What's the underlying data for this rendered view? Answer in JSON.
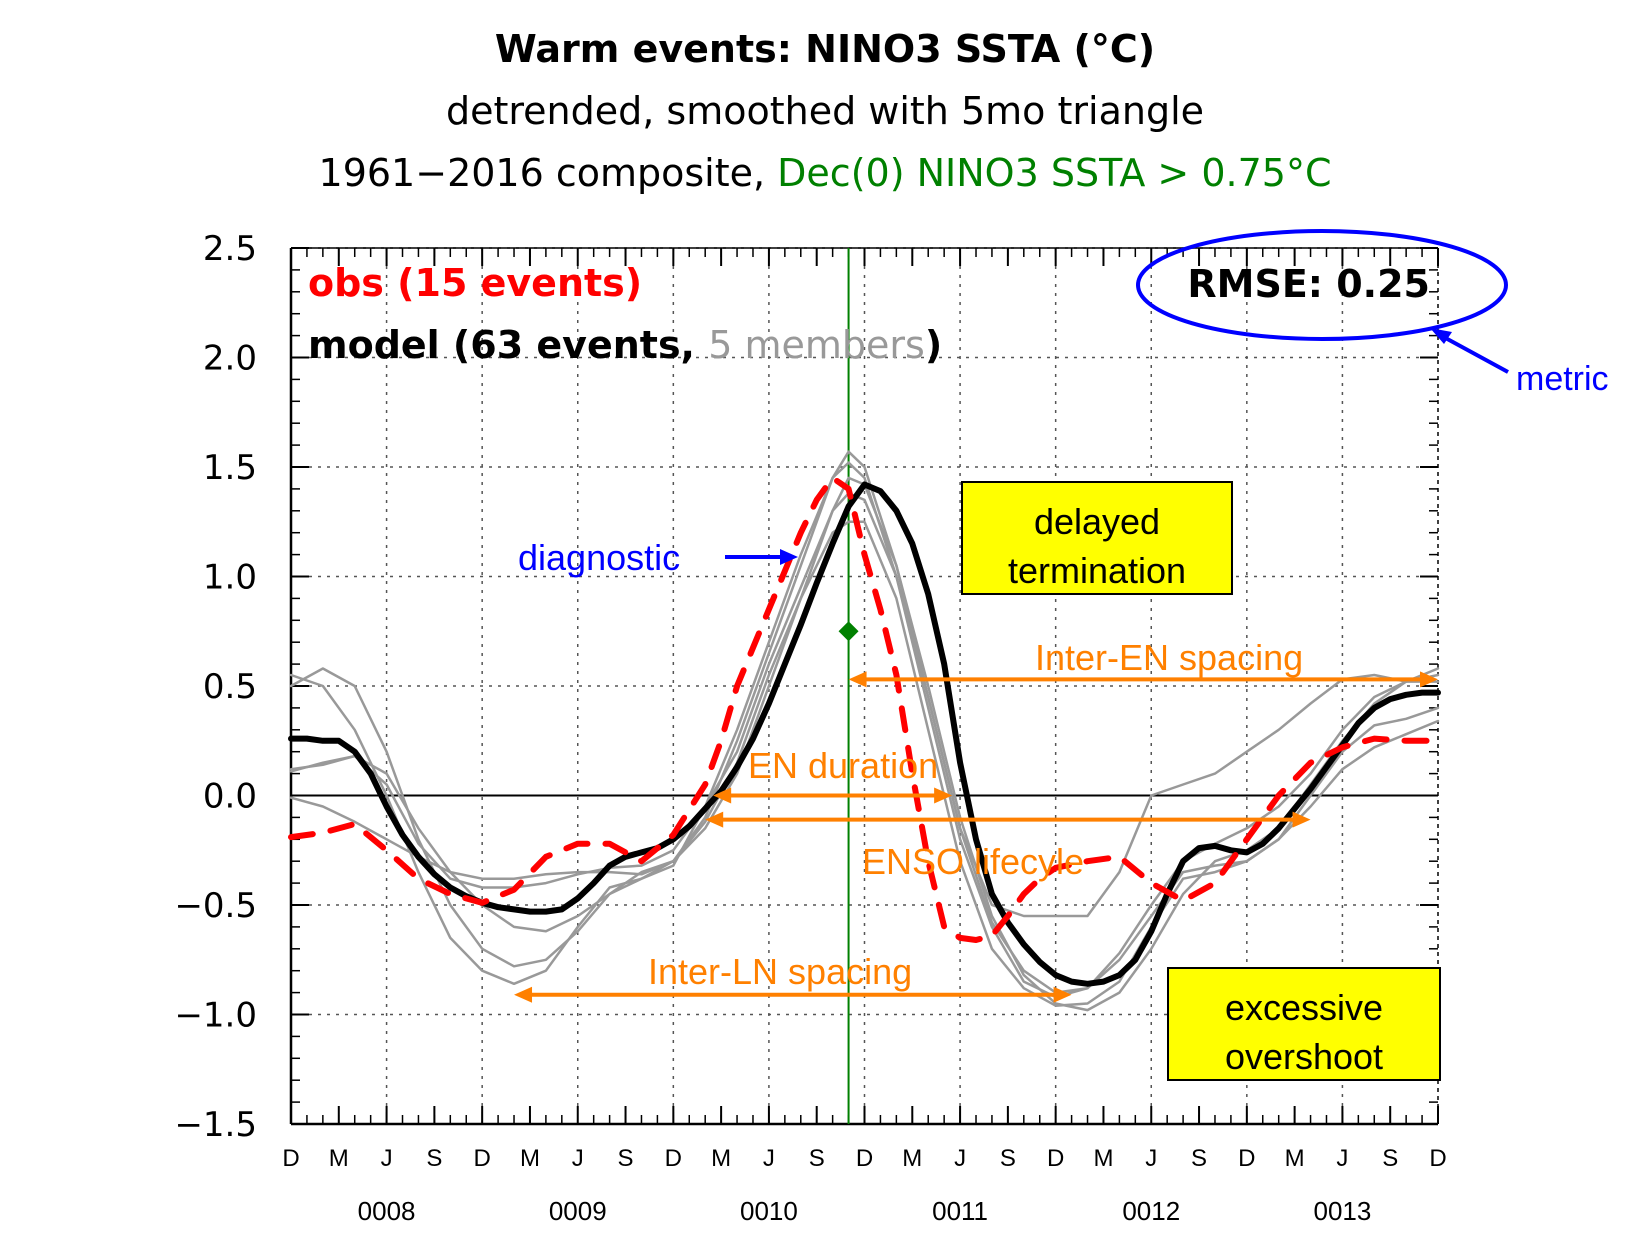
{
  "chart_data": {
    "type": "line",
    "title": "Warm events: NINO3 SSTA (°C)",
    "subtitle_line1": "detrended, smoothed with 5mo triangle",
    "subtitle_line2_prefix": "1961−2016 composite, ",
    "subtitle_line2_highlight": "Dec(0) NINO3 SSTA > 0.75°C",
    "ylim": [
      -1.5,
      2.5
    ],
    "yticks": [
      -1.5,
      -1.0,
      -0.5,
      0.0,
      0.5,
      1.0,
      1.5,
      2.0,
      2.5
    ],
    "ytick_labels": [
      "−1.5",
      "−1.0",
      "−0.5",
      "0.0",
      "0.5",
      "1.0",
      "1.5",
      "2.0",
      "2.5"
    ],
    "xlim": [
      0,
      72
    ],
    "x_month_ticks": [
      0,
      3,
      6,
      9,
      12,
      15,
      18,
      21,
      24,
      27,
      30,
      33,
      36,
      39,
      42,
      45,
      48,
      51,
      54,
      57,
      60,
      63,
      66,
      69,
      72
    ],
    "x_month_labels": [
      "D",
      "M",
      "J",
      "S",
      "D",
      "M",
      "J",
      "S",
      "D",
      "M",
      "J",
      "S",
      "D",
      "M",
      "J",
      "S",
      "D",
      "M",
      "J",
      "S",
      "D",
      "M",
      "J",
      "S",
      "D"
    ],
    "x_year_labels": [
      "0008",
      "0009",
      "0010",
      "0011",
      "0012",
      "0013"
    ],
    "x_year_positions": [
      6,
      18,
      30,
      42,
      54,
      66
    ],
    "grid": true,
    "legend": {
      "obs_label": "obs (15 events)",
      "model_label_prefix": "model (63 events, ",
      "model_label_members": "5 members",
      "model_label_suffix": ")"
    },
    "rmse_label": "RMSE: 0.25",
    "vertical_marker_x": 35,
    "threshold_marker": {
      "x": 35,
      "y": 0.75
    },
    "series": [
      {
        "name": "obs (15 events)",
        "color": "#ff0000",
        "style": "dashed",
        "x": [
          0,
          2,
          4,
          6,
          8,
          10,
          12,
          14,
          16,
          18,
          20,
          22,
          24,
          26,
          27,
          28,
          30,
          32,
          33,
          34,
          35,
          36,
          37,
          38,
          39,
          40,
          41,
          42,
          43,
          44,
          45,
          46,
          47,
          48,
          50,
          52,
          54,
          56,
          58,
          60,
          62,
          64,
          66,
          68,
          70,
          72
        ],
        "y": [
          -0.19,
          -0.17,
          -0.13,
          -0.25,
          -0.38,
          -0.45,
          -0.49,
          -0.43,
          -0.28,
          -0.22,
          -0.22,
          -0.3,
          -0.18,
          0.05,
          0.25,
          0.5,
          0.85,
          1.2,
          1.35,
          1.45,
          1.4,
          1.1,
          0.85,
          0.55,
          0.1,
          -0.3,
          -0.6,
          -0.65,
          -0.66,
          -0.64,
          -0.55,
          -0.45,
          -0.38,
          -0.33,
          -0.3,
          -0.28,
          -0.4,
          -0.48,
          -0.4,
          -0.2,
          0.0,
          0.15,
          0.22,
          0.26,
          0.25,
          0.25
        ]
      },
      {
        "name": "model (63 events, 5 members)",
        "color": "#000000",
        "style": "solid",
        "x": [
          0,
          1,
          2,
          3,
          4,
          5,
          6,
          7,
          8,
          9,
          10,
          11,
          12,
          13,
          14,
          15,
          16,
          17,
          18,
          19,
          20,
          21,
          22,
          23,
          24,
          25,
          26,
          27,
          28,
          29,
          30,
          31,
          32,
          33,
          34,
          35,
          36,
          37,
          38,
          39,
          40,
          41,
          42,
          43,
          44,
          45,
          46,
          47,
          48,
          49,
          50,
          51,
          52,
          53,
          54,
          55,
          56,
          57,
          58,
          59,
          60,
          61,
          62,
          63,
          64,
          65,
          66,
          67,
          68,
          69,
          70,
          71,
          72
        ],
        "y": [
          0.26,
          0.26,
          0.25,
          0.25,
          0.2,
          0.1,
          -0.05,
          -0.18,
          -0.28,
          -0.36,
          -0.42,
          -0.46,
          -0.49,
          -0.51,
          -0.52,
          -0.53,
          -0.53,
          -0.52,
          -0.47,
          -0.4,
          -0.32,
          -0.28,
          -0.26,
          -0.24,
          -0.2,
          -0.14,
          -0.06,
          0.02,
          0.13,
          0.26,
          0.42,
          0.6,
          0.78,
          0.97,
          1.15,
          1.32,
          1.42,
          1.39,
          1.3,
          1.15,
          0.92,
          0.6,
          0.15,
          -0.2,
          -0.45,
          -0.58,
          -0.68,
          -0.76,
          -0.82,
          -0.85,
          -0.86,
          -0.85,
          -0.82,
          -0.75,
          -0.62,
          -0.45,
          -0.3,
          -0.24,
          -0.23,
          -0.25,
          -0.26,
          -0.22,
          -0.15,
          -0.06,
          0.03,
          0.13,
          0.23,
          0.33,
          0.4,
          0.44,
          0.46,
          0.47,
          0.47
        ]
      },
      {
        "name": "member 1",
        "color": "#999999",
        "style": "solid",
        "x": [
          0,
          2,
          4,
          6,
          8,
          10,
          12,
          14,
          16,
          18,
          20,
          22,
          24,
          26,
          28,
          30,
          32,
          34,
          35,
          36,
          38,
          40,
          42,
          44,
          46,
          48,
          50,
          52,
          54,
          56,
          58,
          60,
          62,
          64,
          66,
          68,
          70,
          72
        ],
        "y": [
          0.55,
          0.5,
          0.3,
          0.0,
          -0.35,
          -0.65,
          -0.8,
          -0.86,
          -0.8,
          -0.6,
          -0.42,
          -0.38,
          -0.3,
          -0.1,
          0.25,
          0.65,
          1.05,
          1.45,
          1.57,
          1.5,
          1.05,
          0.5,
          -0.1,
          -0.55,
          -0.82,
          -0.95,
          -0.98,
          -0.9,
          -0.7,
          -0.45,
          -0.3,
          -0.25,
          -0.15,
          0.05,
          0.25,
          0.42,
          0.52,
          0.58
        ]
      },
      {
        "name": "member 2",
        "color": "#999999",
        "style": "solid",
        "x": [
          0,
          2,
          4,
          6,
          8,
          10,
          12,
          14,
          16,
          18,
          20,
          22,
          24,
          26,
          28,
          30,
          32,
          34,
          35,
          36,
          38,
          40,
          42,
          44,
          46,
          48,
          50,
          52,
          54,
          56,
          58,
          60,
          62,
          64,
          66,
          68,
          70,
          72
        ],
        "y": [
          0.12,
          0.14,
          0.18,
          0.1,
          -0.15,
          -0.35,
          -0.5,
          -0.6,
          -0.62,
          -0.55,
          -0.45,
          -0.35,
          -0.3,
          -0.15,
          0.1,
          0.5,
          0.9,
          1.3,
          1.45,
          1.42,
          1.05,
          0.45,
          -0.15,
          -0.5,
          -0.55,
          -0.55,
          -0.55,
          -0.35,
          0.0,
          0.05,
          0.1,
          0.2,
          0.3,
          0.42,
          0.53,
          0.55,
          0.52,
          0.52
        ]
      },
      {
        "name": "member 3",
        "color": "#999999",
        "style": "solid",
        "x": [
          0,
          2,
          4,
          6,
          8,
          10,
          12,
          14,
          16,
          18,
          20,
          22,
          24,
          26,
          28,
          30,
          32,
          34,
          35,
          36,
          38,
          40,
          42,
          44,
          46,
          48,
          50,
          52,
          54,
          56,
          58,
          60,
          62,
          64,
          66,
          68,
          70,
          72
        ],
        "y": [
          -0.01,
          -0.05,
          -0.12,
          -0.2,
          -0.28,
          -0.35,
          -0.38,
          -0.38,
          -0.36,
          -0.35,
          -0.35,
          -0.36,
          -0.3,
          -0.12,
          0.15,
          0.55,
          0.9,
          1.2,
          1.25,
          1.25,
          0.9,
          0.3,
          -0.3,
          -0.7,
          -0.88,
          -0.96,
          -0.95,
          -0.85,
          -0.6,
          -0.38,
          -0.35,
          -0.3,
          -0.2,
          -0.05,
          0.12,
          0.22,
          0.28,
          0.34
        ]
      },
      {
        "name": "member 4",
        "color": "#999999",
        "style": "solid",
        "x": [
          0,
          2,
          4,
          6,
          8,
          10,
          12,
          14,
          16,
          18,
          20,
          22,
          24,
          26,
          28,
          30,
          32,
          34,
          35,
          36,
          38,
          40,
          42,
          44,
          46,
          48,
          50,
          52,
          54,
          56,
          58,
          60,
          62,
          64,
          66,
          68,
          70,
          72
        ],
        "y": [
          0.5,
          0.58,
          0.5,
          0.2,
          -0.2,
          -0.5,
          -0.7,
          -0.78,
          -0.75,
          -0.62,
          -0.45,
          -0.38,
          -0.32,
          -0.05,
          0.3,
          0.7,
          1.1,
          1.45,
          1.52,
          1.45,
          1.0,
          0.4,
          -0.2,
          -0.6,
          -0.85,
          -0.92,
          -0.88,
          -0.72,
          -0.5,
          -0.3,
          -0.22,
          -0.15,
          -0.05,
          0.1,
          0.3,
          0.45,
          0.52,
          0.55
        ]
      },
      {
        "name": "member 5",
        "color": "#999999",
        "style": "solid",
        "x": [
          0,
          2,
          4,
          6,
          8,
          10,
          12,
          14,
          16,
          18,
          20,
          22,
          24,
          26,
          28,
          30,
          32,
          34,
          35,
          36,
          38,
          40,
          42,
          44,
          46,
          48,
          50,
          52,
          54,
          56,
          58,
          60,
          62,
          64,
          66,
          68,
          70,
          72
        ],
        "y": [
          0.11,
          0.15,
          0.18,
          0.05,
          -0.22,
          -0.38,
          -0.42,
          -0.42,
          -0.4,
          -0.36,
          -0.33,
          -0.32,
          -0.25,
          -0.05,
          0.2,
          0.6,
          0.95,
          1.3,
          1.38,
          1.35,
          1.0,
          0.45,
          -0.15,
          -0.58,
          -0.8,
          -0.9,
          -0.88,
          -0.75,
          -0.55,
          -0.35,
          -0.32,
          -0.3,
          -0.2,
          0.0,
          0.2,
          0.32,
          0.35,
          0.4
        ]
      }
    ]
  },
  "annotations": {
    "metric_label": "metric",
    "diagnostic_label": "diagnostic",
    "delayed_line1": "delayed",
    "delayed_line2": "termination",
    "excessive_line1": "excessive",
    "excessive_line2": "overshoot",
    "inter_en_label": "Inter-EN spacing",
    "en_duration_label": "EN duration",
    "enso_lifecycle_label": "ENSO lifecyle",
    "inter_ln_label": "Inter-LN spacing"
  },
  "colors": {
    "obs": "#ff0000",
    "model": "#000000",
    "member": "#999999",
    "threshold": "#008000",
    "metric_blue": "#0000ff",
    "annotation_orange": "#ff8000",
    "box_fill": "#ffff00"
  }
}
